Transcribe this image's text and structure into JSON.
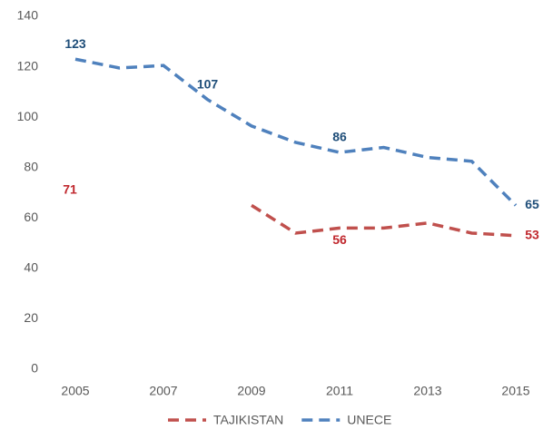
{
  "chart_data": {
    "type": "line",
    "x": [
      2005,
      2006,
      2007,
      2008,
      2009,
      2010,
      2011,
      2012,
      2013,
      2014,
      2015
    ],
    "xlim": [
      2005,
      2015
    ],
    "xticks": [
      2005,
      2007,
      2009,
      2011,
      2013,
      2015
    ],
    "ylim": [
      0,
      140
    ],
    "yticks": [
      0,
      20,
      40,
      60,
      80,
      100,
      120,
      140
    ],
    "legend": "bottom",
    "series": [
      {
        "name": "TAJIKISTAN",
        "color": "#c0504d",
        "label_color": "#c0272d",
        "values": [
          71,
          null,
          null,
          null,
          65,
          54,
          56,
          56,
          58,
          54,
          53
        ],
        "value_labels": [
          "71",
          null,
          null,
          null,
          null,
          null,
          "56",
          null,
          null,
          null,
          "53"
        ]
      },
      {
        "name": "UNECE",
        "color": "#4f81bd",
        "label_color": "#1f4e79",
        "values": [
          123,
          119.5,
          120.5,
          107,
          96.5,
          90,
          86,
          88,
          84,
          82.5,
          65
        ],
        "value_labels": [
          "123",
          null,
          null,
          "107",
          null,
          null,
          "86",
          null,
          null,
          null,
          "65"
        ]
      }
    ]
  }
}
